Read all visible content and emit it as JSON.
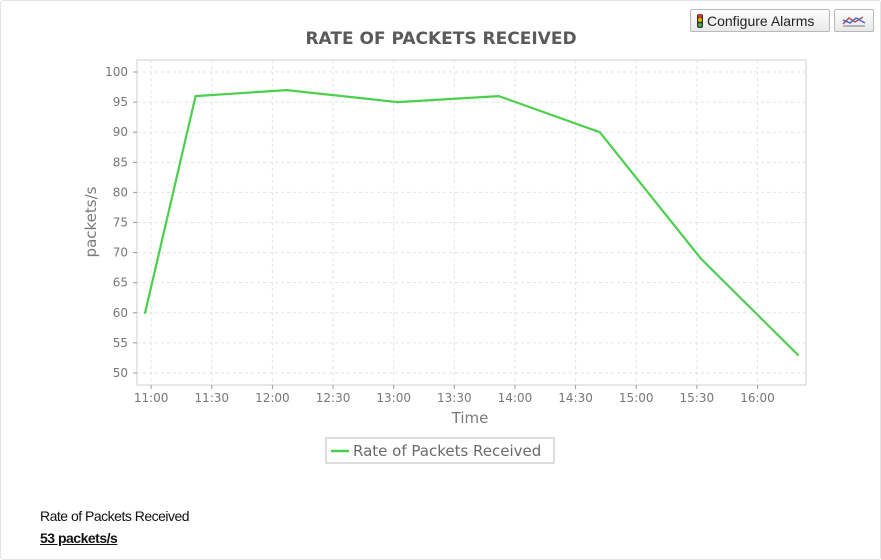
{
  "toolbar": {
    "configure_alarms_label": "Configure Alarms",
    "configure_alarms_icon": "traffic-light-icon",
    "chart_type_icon": "line-chart-icon"
  },
  "chart_data": {
    "type": "line",
    "title": "RATE OF PACKETS RECEIVED",
    "xlabel": "Time",
    "ylabel": "packets/s",
    "ylim": [
      48,
      102
    ],
    "yticks": [
      50,
      55,
      60,
      65,
      70,
      75,
      80,
      85,
      90,
      95,
      100
    ],
    "xlim": [
      "10:53",
      "16:24"
    ],
    "xticks": [
      "11:00",
      "11:30",
      "12:00",
      "12:30",
      "13:00",
      "13:30",
      "14:00",
      "14:30",
      "15:00",
      "15:30",
      "16:00"
    ],
    "grid": true,
    "legend_position": "bottom-center",
    "series": [
      {
        "name": "Rate of Packets Received",
        "color": "#4ccf4c",
        "x": [
          "10:57",
          "11:22",
          "12:07",
          "13:02",
          "13:52",
          "14:42",
          "15:32",
          "16:20"
        ],
        "y": [
          60,
          96,
          97,
          95,
          96,
          90,
          69,
          53
        ]
      }
    ]
  },
  "summary": {
    "title": "Rate of Packets Received",
    "value": "53 packets/s"
  }
}
